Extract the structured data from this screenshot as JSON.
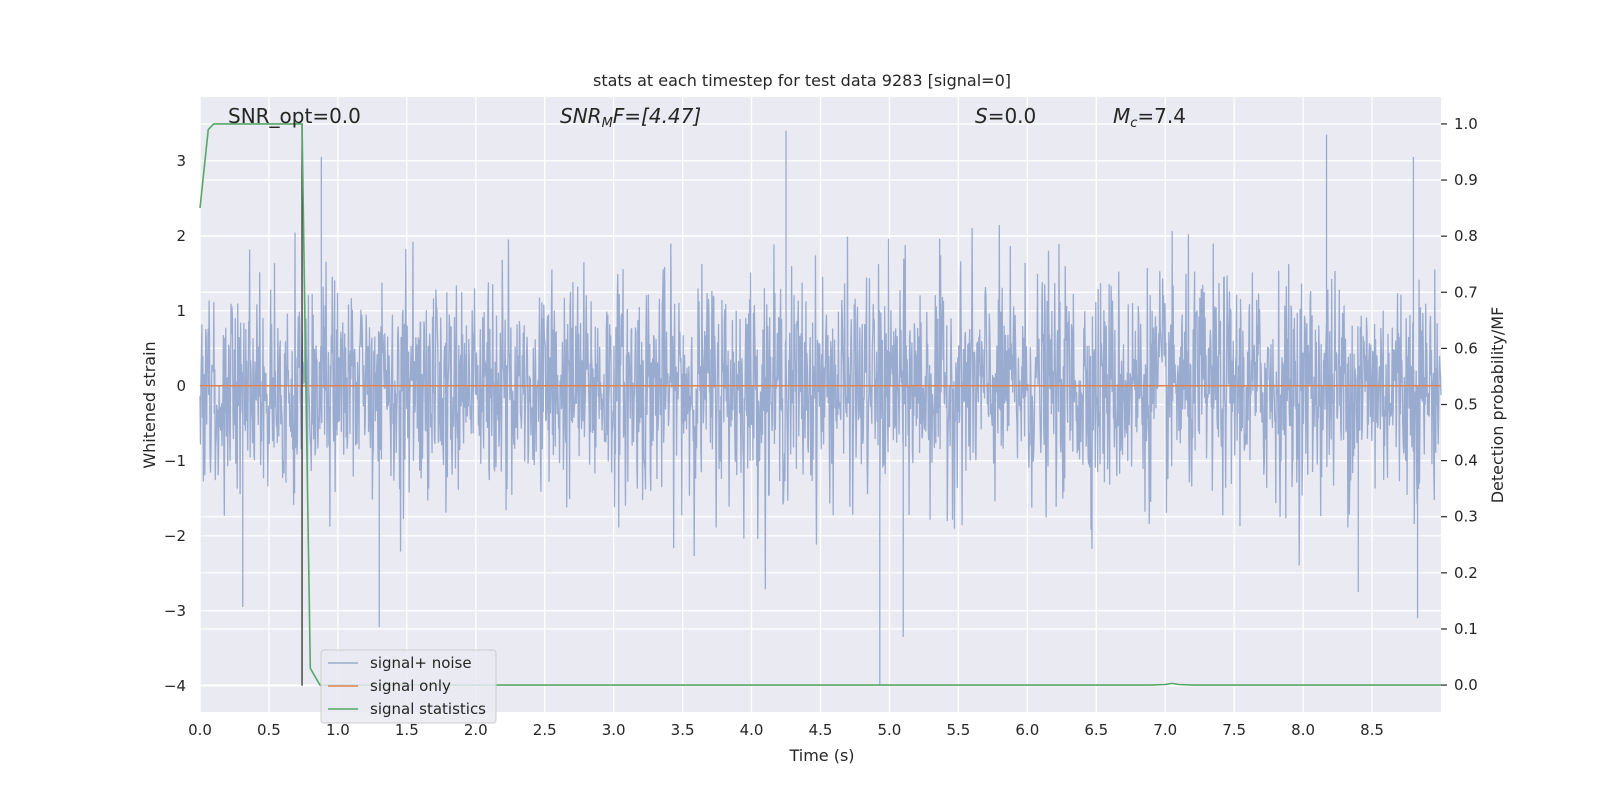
{
  "chart_data": {
    "type": "line",
    "title": "stats at each timestep for test data 9283 [signal=0]",
    "xlabel": "Time (s)",
    "ylabel": "Whitened strain",
    "ylabel_right": "Detection probability/MF",
    "xlim": [
      0.0,
      9.0
    ],
    "ylim": [
      -4.35,
      3.85
    ],
    "ylim_right": [
      -0.048,
      1.048
    ],
    "x_ticks": [
      "0.0",
      "0.5",
      "1.0",
      "1.5",
      "2.0",
      "2.5",
      "3.0",
      "3.5",
      "4.0",
      "4.5",
      "5.0",
      "5.5",
      "6.0",
      "6.5",
      "7.0",
      "7.5",
      "8.0",
      "8.5"
    ],
    "y_ticks": [
      -4,
      -3,
      -2,
      -1,
      0,
      1,
      2,
      3
    ],
    "y_tick_labels": [
      "−4",
      "−3",
      "−2",
      "−1",
      "0",
      "1",
      "2",
      "3"
    ],
    "y_right_ticks": [
      "0.0",
      "0.1",
      "0.2",
      "0.3",
      "0.4",
      "0.5",
      "0.6",
      "0.7",
      "0.8",
      "0.9",
      "1.0"
    ],
    "grid": true,
    "legend_position": "lower-left",
    "annotations": {
      "snr_opt": "SNR_opt=0.0",
      "snr_mf_base": "SNR",
      "snr_mf_sub": "M",
      "snr_mf_rest": "F=[4.47]",
      "s_sym": "S",
      "s_rest": "=0.0",
      "mc_base": "M",
      "mc_sub": "c",
      "mc_rest": "=7.4"
    },
    "marker_time": 0.74,
    "series": [
      {
        "name": "signal+ noise",
        "axis": "left",
        "color": "#9aabd0",
        "description_range": [
          -4.0,
          3.4
        ],
        "noise_std": 0.72,
        "peaks": [
          [
            0.31,
            -2.95
          ],
          [
            0.88,
            3.05
          ],
          [
            1.3,
            -3.22
          ],
          [
            4.25,
            3.42
          ],
          [
            4.93,
            -4.0
          ],
          [
            5.1,
            -3.35
          ],
          [
            8.17,
            3.35
          ],
          [
            8.4,
            -2.75
          ],
          [
            8.8,
            3.05
          ],
          [
            8.83,
            -3.1
          ]
        ]
      },
      {
        "name": "signal only",
        "axis": "left",
        "color": "#dd8452",
        "x": [
          0.0,
          9.0
        ],
        "y": [
          0.0,
          0.0
        ]
      },
      {
        "name": "signal statistics",
        "axis": "right",
        "color": "#55a868",
        "x": [
          0.0,
          0.06,
          0.1,
          0.2,
          0.3,
          0.4,
          0.5,
          0.6,
          0.7,
          0.74,
          0.77,
          0.8,
          0.87,
          0.9,
          1.0,
          2.0,
          3.0,
          4.0,
          5.0,
          6.0,
          6.9,
          7.0,
          7.05,
          7.1,
          7.2,
          8.0,
          9.0
        ],
        "y": [
          0.85,
          0.99,
          1.0,
          1.0,
          1.0,
          1.0,
          1.0,
          1.0,
          1.0,
          1.0,
          0.5,
          0.03,
          0.0,
          0.0,
          0.0,
          0.0,
          0.0,
          0.0,
          0.0,
          0.0,
          0.0,
          0.001,
          0.003,
          0.001,
          0.0,
          0.0,
          0.0
        ]
      }
    ]
  }
}
